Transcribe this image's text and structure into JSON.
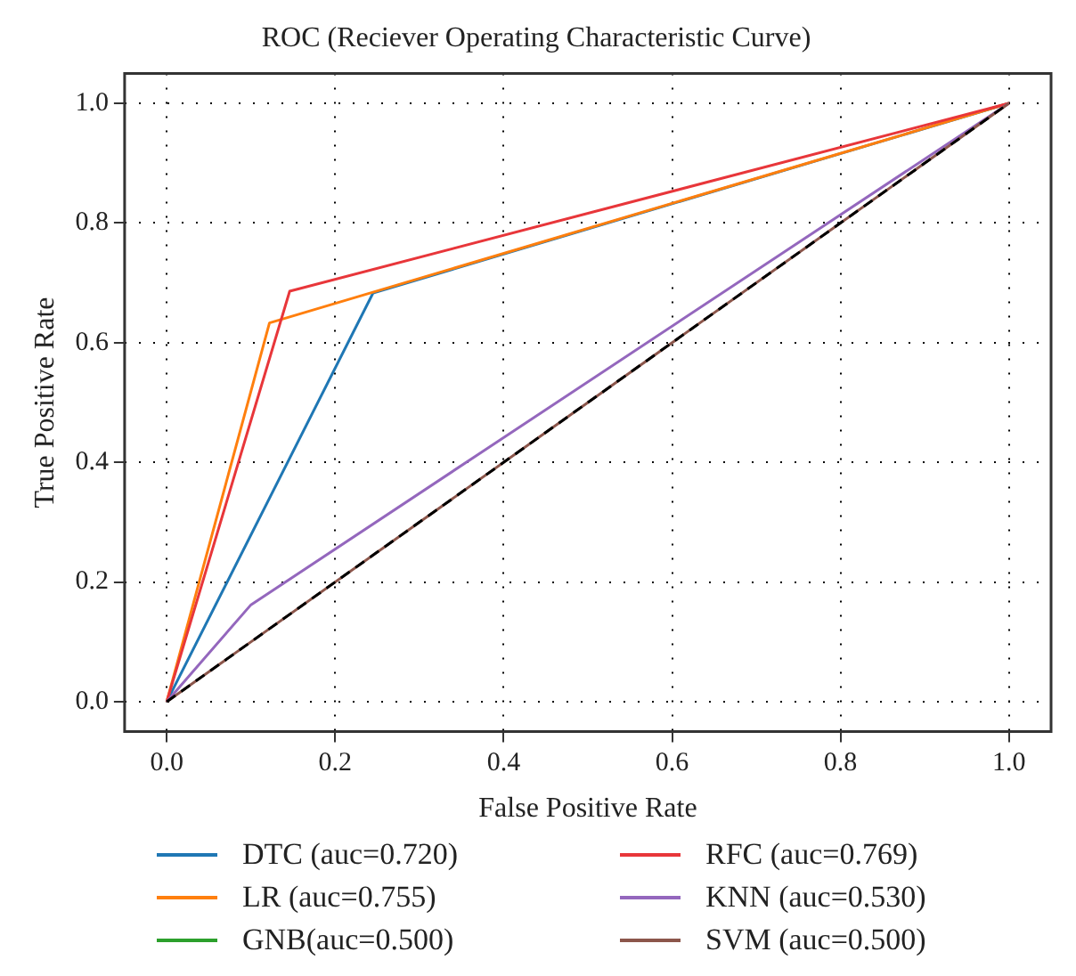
{
  "chart_data": {
    "type": "line",
    "title": "ROC (Reciever Operating Characteristic Curve)",
    "xlabel": "False Positive Rate",
    "ylabel": "True Positive Rate",
    "xlim": [
      -0.05,
      1.05
    ],
    "ylim": [
      -0.05,
      1.05
    ],
    "xticks": [
      {
        "value": 0,
        "label": "0.0"
      },
      0.2,
      0.4,
      0.6,
      0.8,
      {
        "value": 1,
        "label": "1.0"
      }
    ],
    "yticks": [
      {
        "value": 0,
        "label": "0.0"
      },
      0.2,
      0.4,
      0.6,
      0.8,
      {
        "value": 1,
        "label": "1.0"
      }
    ],
    "grid": true,
    "legend": "bottom",
    "marker": "none",
    "line_style": "solid",
    "series": [
      {
        "name": "DTC (auc=0.720)",
        "color": "#1f77b4",
        "x": [
          0,
          0.245,
          1
        ],
        "values": [
          0,
          0.683,
          1
        ]
      },
      {
        "name": "LR (auc=0.755)",
        "color": "#ff7f0e",
        "x": [
          0,
          0.122,
          1
        ],
        "values": [
          0,
          0.633,
          1
        ]
      },
      {
        "name": "GNB(auc=0.500)",
        "color": "#2ca02c"
      },
      {
        "name": "RFC (auc=0.769)",
        "color": "#e8363a",
        "x": [
          0,
          0.146,
          1
        ],
        "values": [
          0,
          0.686,
          1
        ]
      },
      {
        "name": "KNN (auc=0.530)",
        "color": "#9467bd",
        "x": [
          0,
          0.1,
          1
        ],
        "values": [
          0,
          0.162,
          1
        ]
      },
      {
        "name": "SVM (auc=0.500)",
        "color": "#8c564b",
        "x": [
          0,
          1
        ],
        "values": [
          0,
          1
        ]
      },
      {
        "color": "#000000",
        "line_style": "dashed",
        "x": [
          0,
          1
        ],
        "values": [
          0,
          1
        ]
      }
    ]
  }
}
